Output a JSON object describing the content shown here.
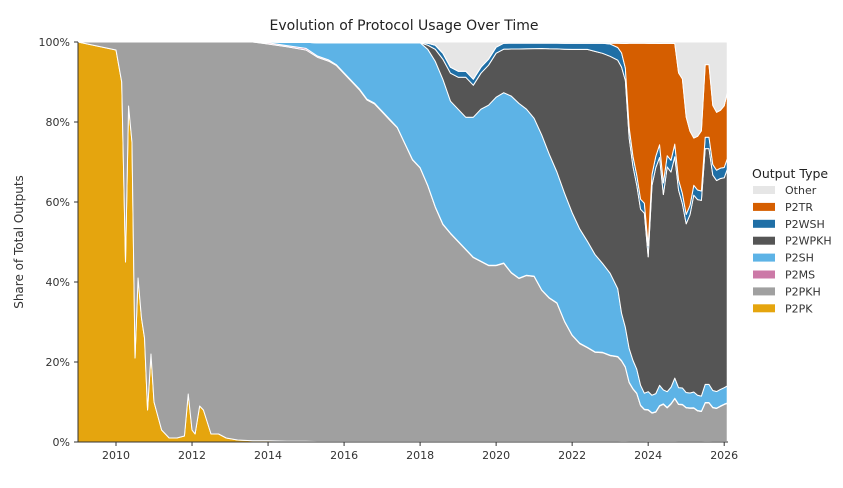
{
  "chart_data": {
    "type": "area",
    "stacked": true,
    "normalized": true,
    "title": "Evolution of Protocol Usage Over Time",
    "xlabel": "",
    "ylabel": "Share of Total Outputs",
    "xlim": [
      2009.0,
      2026.1
    ],
    "ylim": [
      0,
      100
    ],
    "x_ticks": [
      2010,
      2012,
      2014,
      2016,
      2018,
      2020,
      2022,
      2024,
      2026
    ],
    "x_tick_labels": [
      "2010",
      "2012",
      "2014",
      "2016",
      "2018",
      "2020",
      "2022",
      "2024",
      "2026"
    ],
    "y_ticks": [
      0,
      20,
      40,
      60,
      80,
      100
    ],
    "y_tick_labels": [
      "0%",
      "20%",
      "40%",
      "60%",
      "80%",
      "100%"
    ],
    "legend": {
      "title": "Output Type",
      "placement": "right",
      "entries": [
        "Other",
        "P2TR",
        "P2WSH",
        "P2WPKH",
        "P2SH",
        "P2MS",
        "P2PKH",
        "P2PK"
      ]
    },
    "x": [
      2009.0,
      2009.5,
      2010.0,
      2010.15,
      2010.25,
      2010.33,
      2010.42,
      2010.5,
      2010.58,
      2010.67,
      2010.75,
      2010.83,
      2010.92,
      2011.0,
      2011.2,
      2011.4,
      2011.6,
      2011.8,
      2011.9,
      2012.0,
      2012.08,
      2012.2,
      2012.3,
      2012.5,
      2012.7,
      2012.9,
      2013.2,
      2013.6,
      2014.0,
      2014.5,
      2015.0,
      2015.3,
      2015.6,
      2015.8,
      2016.0,
      2016.2,
      2016.4,
      2016.6,
      2016.8,
      2017.0,
      2017.2,
      2017.4,
      2017.6,
      2017.8,
      2018.0,
      2018.2,
      2018.4,
      2018.6,
      2018.8,
      2019.0,
      2019.2,
      2019.4,
      2019.6,
      2019.8,
      2020.0,
      2020.2,
      2020.4,
      2020.6,
      2020.8,
      2021.0,
      2021.2,
      2021.4,
      2021.6,
      2021.8,
      2022.0,
      2022.2,
      2022.4,
      2022.6,
      2022.8,
      2023.0,
      2023.2,
      2023.3,
      2023.4,
      2023.5,
      2023.6,
      2023.7,
      2023.8,
      2023.9,
      2024.0,
      2024.1,
      2024.2,
      2024.3,
      2024.4,
      2024.5,
      2024.6,
      2024.7,
      2024.8,
      2024.9,
      2025.0,
      2025.1,
      2025.2,
      2025.3,
      2025.4,
      2025.5,
      2025.6,
      2025.7,
      2025.8,
      2025.9,
      2026.0,
      2026.08
    ],
    "series": [
      {
        "name": "P2PK",
        "color": "#E5A50E",
        "values": [
          100,
          99,
          98,
          90,
          45,
          84,
          75,
          21,
          41,
          31,
          26,
          8,
          22,
          10,
          3,
          1,
          1,
          1.5,
          12,
          3,
          2,
          9,
          8,
          2,
          2,
          1,
          0.5,
          0.3,
          0.3,
          0.2,
          0.2,
          0.1,
          0.1,
          0.1,
          0.1,
          0.1,
          0.1,
          0.1,
          0.1,
          0.1,
          0.1,
          0.1,
          0.1,
          0.1,
          0.1,
          0.1,
          0.1,
          0.1,
          0.1,
          0.1,
          0.1,
          0.1,
          0.1,
          0.1,
          0.1,
          0.1,
          0.1,
          0.1,
          0.1,
          0.1,
          0.1,
          0.1,
          0.1,
          0.1,
          0.1,
          0.1,
          0.1,
          0.1,
          0.1,
          0.1,
          0.1,
          0.1,
          0.1,
          0.1,
          0.1,
          0.1,
          0.1,
          0.1,
          0.1,
          0.1,
          0.1,
          0.1,
          0.1,
          0.1,
          0.1,
          0.1,
          0.1,
          0.1,
          0.1,
          0.1,
          0.1,
          0.1,
          0.1,
          0.1,
          0.1,
          0.1,
          0.1,
          0.1,
          0.1,
          0.1
        ]
      },
      {
        "name": "P2PKH",
        "color": "#A0A0A0",
        "values": [
          0,
          1,
          2,
          10,
          55,
          16,
          25,
          79,
          59,
          69,
          74,
          92,
          78,
          90,
          97,
          99,
          99,
          98.5,
          88,
          97,
          98,
          91,
          92,
          98,
          98,
          99,
          99.5,
          99.7,
          99.2,
          98.6,
          97.8,
          96,
          95,
          94,
          92,
          90,
          88,
          85,
          84,
          82,
          80,
          78,
          74,
          70,
          68,
          64,
          58,
          54,
          52,
          50,
          48,
          46,
          45,
          44,
          44,
          45,
          43,
          42,
          44,
          45,
          42,
          38,
          36,
          30,
          26,
          24,
          23,
          22,
          22,
          21,
          20,
          17,
          15,
          14,
          13,
          12,
          9,
          8,
          7,
          6.5,
          6.5,
          7,
          8,
          7.5,
          8,
          8.5,
          9,
          9,
          9,
          9,
          8.5,
          8,
          8,
          8.5,
          8.5,
          8,
          8,
          8.5,
          9,
          9
        ]
      },
      {
        "name": "P2MS",
        "color": "#CC79A7",
        "values": [
          0,
          0,
          0,
          0,
          0,
          0,
          0,
          0,
          0,
          0,
          0,
          0,
          0,
          0,
          0,
          0,
          0,
          0,
          0,
          0,
          0,
          0,
          0,
          0,
          0,
          0,
          0,
          0,
          0.3,
          0.3,
          0.4,
          0.3,
          0.3,
          0.2,
          0.2,
          0.2,
          0.2,
          0.2,
          0.2,
          0.2,
          0.2,
          0.1,
          0.1,
          0.1,
          0.1,
          0.1,
          0.1,
          0.1,
          0.1,
          0.1,
          0.1,
          0.1,
          0.1,
          0.1,
          0.1,
          0.1,
          0.1,
          0.1,
          0.1,
          0.1,
          0.1,
          0.1,
          0.1,
          0.1,
          0.1,
          0.1,
          0.1,
          0.1,
          0.1,
          0.1,
          0.1,
          0.1,
          0.1,
          0.1,
          0.1,
          0.1,
          0.1,
          0.1,
          0.1,
          0.1,
          0.1,
          0.1,
          0.1,
          0.1,
          0.1,
          0.1,
          0.1,
          0.1,
          0.1,
          0.1,
          0.1,
          0.1,
          0.1,
          0.1,
          0.1,
          0.1,
          0.1,
          0.1,
          0.1,
          0.1
        ]
      },
      {
        "name": "P2SH",
        "color": "#5DB3E6",
        "values": [
          0,
          0,
          0,
          0,
          0,
          0,
          0,
          0,
          0,
          0,
          0,
          0,
          0,
          0,
          0,
          0,
          0,
          0,
          0,
          0,
          0,
          0,
          0,
          0,
          0,
          0,
          0,
          0,
          0.2,
          0.8,
          1.5,
          3.3,
          4.3,
          5.5,
          7.5,
          9.5,
          11.5,
          14,
          15,
          17,
          19,
          21,
          25,
          29,
          31,
          34,
          36,
          36,
          33,
          33,
          33,
          35,
          38,
          40,
          42,
          43,
          45,
          45,
          44,
          43,
          43,
          38,
          34,
          32,
          30,
          28,
          26,
          24,
          22,
          20,
          16,
          10,
          8,
          8,
          7,
          6,
          5,
          4,
          4,
          4,
          4,
          4,
          3,
          3.5,
          3.5,
          4,
          4,
          4,
          4,
          4,
          4,
          4,
          4,
          4,
          4,
          4,
          4,
          4,
          4,
          4
        ]
      },
      {
        "name": "P2WPKH",
        "color": "#555555",
        "values": [
          0,
          0,
          0,
          0,
          0,
          0,
          0,
          0,
          0,
          0,
          0,
          0,
          0,
          0,
          0,
          0,
          0,
          0,
          0,
          0,
          0,
          0,
          0,
          0,
          0,
          0,
          0,
          0,
          0,
          0,
          0,
          0,
          0,
          0,
          0,
          0,
          0,
          0,
          0,
          0,
          0,
          0,
          0,
          0,
          0,
          1,
          3,
          5,
          7,
          8,
          10,
          8,
          9,
          10,
          11,
          11,
          12,
          14,
          16,
          19,
          24,
          28,
          32,
          36,
          40,
          44,
          47,
          50,
          52,
          53,
          54,
          52,
          50,
          50,
          48,
          46,
          44,
          45,
          30,
          48,
          50,
          45,
          42,
          50,
          46,
          44,
          48,
          45,
          45,
          48,
          50,
          51,
          52,
          52,
          52,
          51,
          51,
          51,
          51,
          51
        ]
      },
      {
        "name": "P2WSH",
        "color": "#1F6FA6",
        "values": [
          0,
          0,
          0,
          0,
          0,
          0,
          0,
          0,
          0,
          0,
          0,
          0,
          0,
          0,
          0,
          0,
          0,
          0,
          0,
          0,
          0,
          0,
          0,
          0,
          0,
          0,
          0,
          0,
          0,
          0,
          0,
          0,
          0,
          0,
          0,
          0,
          0,
          0,
          0,
          0,
          0,
          0,
          0,
          0,
          0,
          0.5,
          1,
          1.5,
          1.5,
          1.5,
          1.5,
          1.5,
          1.5,
          1.5,
          1.5,
          1.5,
          1.5,
          1.5,
          1.5,
          1.5,
          1.5,
          1.5,
          1.5,
          1.5,
          1.5,
          1.5,
          1.5,
          2,
          2.5,
          3,
          3,
          3,
          2.5,
          2.5,
          2.5,
          2.5,
          2.5,
          2.5,
          2.5,
          2.5,
          2.5,
          2.5,
          2.5,
          2.5,
          2.5,
          2.5,
          2.5,
          2.5,
          2.5,
          2.5,
          2.5,
          2.5,
          2.5,
          2.5,
          2.5,
          2.5,
          2.5,
          2.5,
          2.5,
          2.5
        ]
      },
      {
        "name": "P2TR",
        "color": "#D55E00",
        "values": [
          0,
          0,
          0,
          0,
          0,
          0,
          0,
          0,
          0,
          0,
          0,
          0,
          0,
          0,
          0,
          0,
          0,
          0,
          0,
          0,
          0,
          0,
          0,
          0,
          0,
          0,
          0,
          0,
          0,
          0,
          0,
          0,
          0,
          0,
          0,
          0,
          0,
          0,
          0,
          0,
          0,
          0,
          0,
          0,
          0,
          0,
          0,
          0,
          0,
          0,
          0,
          0,
          0,
          0,
          0,
          0,
          0,
          0,
          0,
          0,
          0,
          0,
          0,
          0,
          0,
          0,
          0,
          0,
          0,
          0.2,
          1,
          2,
          5,
          20,
          28,
          33,
          39,
          40,
          45,
          30,
          25,
          20,
          30,
          25,
          25,
          20,
          26,
          28,
          26,
          20,
          12,
          14,
          16,
          16,
          16,
          14,
          14,
          14,
          15,
          15.5
        ]
      },
      {
        "name": "Other",
        "color": "#E6E6E6",
        "values": [
          0,
          0,
          0,
          0,
          0,
          0,
          0,
          0,
          0,
          0,
          0,
          0,
          0,
          0,
          0,
          0,
          0,
          0,
          0,
          0,
          0,
          0,
          0,
          0,
          0,
          0,
          0,
          0,
          0,
          0.1,
          0.1,
          0.2,
          0.2,
          0.2,
          0.2,
          0.2,
          0.2,
          0.2,
          0.2,
          0.2,
          0.2,
          0.2,
          0.2,
          0.2,
          0.2,
          0.3,
          0.8,
          2.8,
          6.3,
          7.3,
          7.3,
          9.3,
          6.3,
          4.3,
          1.3,
          0.3,
          0.3,
          0.3,
          0.3,
          0.3,
          0.3,
          0.3,
          0.3,
          0.3,
          0.3,
          0.3,
          0.3,
          0.3,
          0.3,
          0.3,
          0.3,
          0.3,
          0.3,
          0.3,
          0.3,
          0.3,
          0.3,
          0.3,
          0.3,
          0.3,
          0.3,
          0.3,
          0.3,
          0.3,
          0.3,
          0.3,
          7.5,
          9.0,
          20.0,
          24.0,
          24.4,
          24.6,
          23.6,
          5.0,
          5.0,
          15.0,
          17.0,
          16.5,
          15.5,
          12.0
        ]
      }
    ]
  }
}
